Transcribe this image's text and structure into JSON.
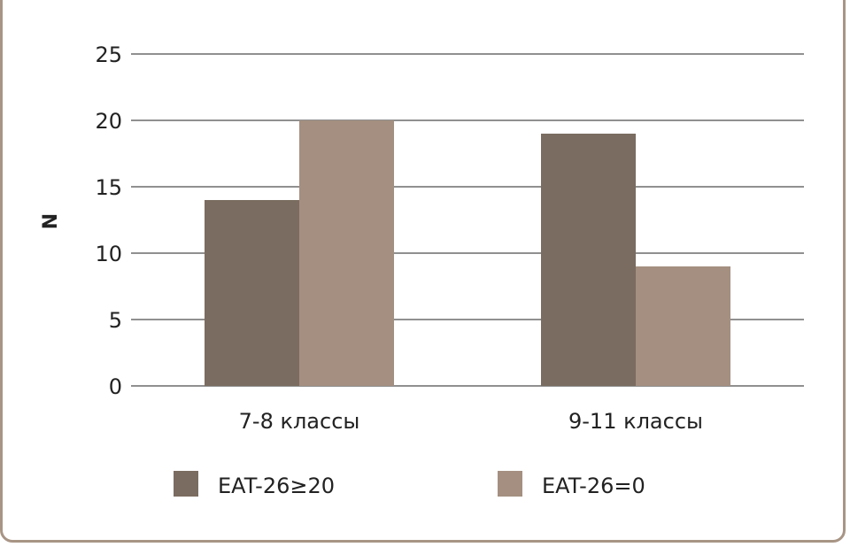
{
  "chart_data": {
    "type": "bar",
    "title": "",
    "xlabel": "",
    "ylabel": "N",
    "ylim": [
      0,
      25
    ],
    "yticks": [
      0,
      5,
      10,
      15,
      20,
      25
    ],
    "grid": true,
    "legend_position": "bottom",
    "categories": [
      "7-8 классы",
      "9-11 классы"
    ],
    "series": [
      {
        "name": "EAT-26≥20",
        "values": [
          14,
          19
        ],
        "color": "#7a6c60"
      },
      {
        "name": "EAT-26=0",
        "values": [
          20,
          9
        ],
        "color": "#a48f80"
      }
    ]
  },
  "colors": {
    "frame": "#a89585",
    "grid": "#222222"
  }
}
